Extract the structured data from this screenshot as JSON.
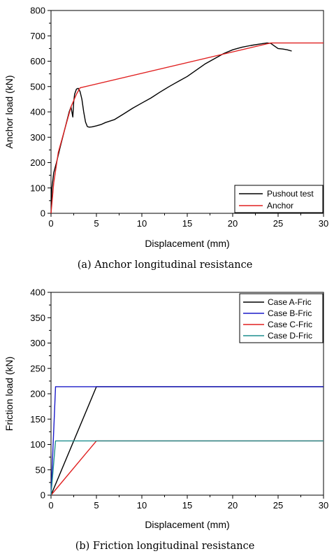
{
  "chart_data": [
    {
      "type": "line",
      "caption": "(a) Anchor longitudinal resistance",
      "xlabel": "Displacement (mm)",
      "ylabel": "Anchor load (kN)",
      "xlim": [
        0,
        30
      ],
      "ylim": [
        0,
        800
      ],
      "xticks": [
        0,
        5,
        10,
        15,
        20,
        25,
        30
      ],
      "yticks": [
        0,
        100,
        200,
        300,
        400,
        500,
        600,
        700,
        800
      ],
      "grid": false,
      "legend_position": "bottom-right",
      "series": [
        {
          "name": "Pushout test",
          "color": "#000000",
          "x": [
            0,
            0.1,
            0.3,
            0.6,
            1.0,
            1.5,
            2.0,
            2.2,
            2.4,
            2.5,
            2.6,
            2.8,
            3.0,
            3.2,
            3.4,
            3.6,
            3.8,
            4.0,
            4.2,
            4.5,
            5.0,
            5.5,
            6.0,
            7.0,
            8.0,
            9.0,
            10.0,
            11.0,
            12.0,
            13.0,
            14.0,
            15.0,
            16.0,
            17.0,
            18.0,
            19.0,
            20.0,
            21.0,
            22.0,
            23.0,
            23.8,
            24.2,
            24.6,
            25.0,
            25.5,
            26.0,
            26.5
          ],
          "y": [
            0,
            100,
            160,
            200,
            260,
            330,
            400,
            420,
            380,
            440,
            470,
            490,
            493,
            480,
            450,
            400,
            360,
            342,
            340,
            341,
            345,
            350,
            358,
            370,
            392,
            415,
            435,
            455,
            478,
            500,
            520,
            540,
            565,
            590,
            610,
            630,
            645,
            655,
            662,
            668,
            672,
            670,
            660,
            650,
            648,
            645,
            640
          ]
        },
        {
          "name": "Anchor",
          "color": "#e02020",
          "x": [
            0,
            0.3,
            0.8,
            1.5,
            2.2,
            2.8,
            3.2,
            24.2,
            30
          ],
          "y": [
            0,
            120,
            240,
            330,
            420,
            470,
            495,
            672,
            672
          ]
        }
      ]
    },
    {
      "type": "line",
      "caption": "(b) Friction longitudinal resistance",
      "xlabel": "Displacement (mm)",
      "ylabel": "Friction load (kN)",
      "xlim": [
        0,
        30
      ],
      "ylim": [
        0,
        400
      ],
      "xticks": [
        0,
        5,
        10,
        15,
        20,
        25,
        30
      ],
      "yticks": [
        0,
        50,
        100,
        150,
        200,
        250,
        300,
        350,
        400
      ],
      "grid": false,
      "legend_position": "top-right",
      "series": [
        {
          "name": "Case A-Fric",
          "color": "#000000",
          "x": [
            0,
            5,
            30
          ],
          "y": [
            0,
            214,
            214
          ]
        },
        {
          "name": "Case B-Fric",
          "color": "#1a1ac8",
          "x": [
            0,
            0.5,
            30
          ],
          "y": [
            0,
            214,
            214
          ]
        },
        {
          "name": "Case C-Fric",
          "color": "#e02020",
          "x": [
            0,
            5,
            30
          ],
          "y": [
            0,
            107,
            107
          ]
        },
        {
          "name": "Case D-Fric",
          "color": "#1f8f8f",
          "x": [
            0,
            0.5,
            30
          ],
          "y": [
            0,
            107,
            107
          ]
        }
      ]
    }
  ]
}
